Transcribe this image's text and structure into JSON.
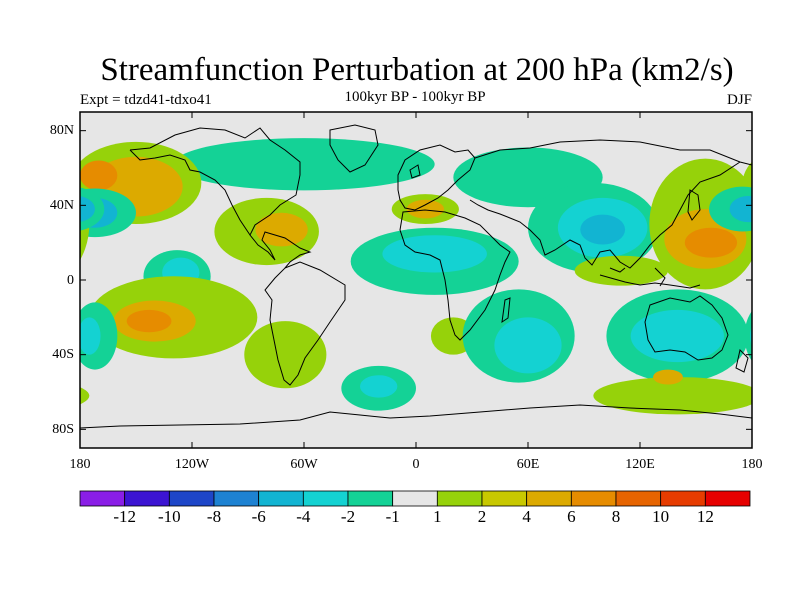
{
  "title": "Streamfunction Perturbation at 200 hPa (km2/s)",
  "experiment": "Expt = tdzd41-tdxo41",
  "period": "100kyr BP - 100kyr BP",
  "season": "DJF",
  "lat_labels": [
    "80N",
    "40N",
    "0",
    "40S",
    "80S"
  ],
  "lon_labels": [
    "180",
    "120W",
    "60W",
    "0",
    "60E",
    "120E",
    "180"
  ],
  "colorbar": {
    "colors": [
      "#8a1ee6",
      "#3c14d2",
      "#1e46c8",
      "#1e82d2",
      "#12b4d2",
      "#14d2d2",
      "#14d296",
      "#e6e6e6",
      "#96d20a",
      "#c8c800",
      "#dcaa00",
      "#e68c00",
      "#e66400",
      "#e63c00",
      "#e60000"
    ],
    "labels": [
      "-12",
      "-10",
      "-8",
      "-6",
      "-4",
      "-2",
      "-1",
      "1",
      "2",
      "4",
      "6",
      "8",
      "10",
      "12"
    ]
  },
  "map_data": {
    "projection": "cylindrical-equidistant",
    "lon_range": [
      -180,
      180
    ],
    "lat_range": [
      -90,
      90
    ],
    "field": "200 hPa streamfunction perturbation",
    "units": "km2/s",
    "features": [
      {
        "name": "arctic-negative",
        "color": "#14d296",
        "lon": -60,
        "lat": 62,
        "rlon": 70,
        "rlat": 14
      },
      {
        "name": "eurasia-negative",
        "color": "#14d296",
        "lon": 60,
        "lat": 55,
        "rlon": 40,
        "rlat": 16
      },
      {
        "name": "ne-pacific-positive",
        "color": "#96d20a",
        "lon": -150,
        "lat": 52,
        "rlon": 35,
        "rlat": 22
      },
      {
        "name": "ne-pacific-positive-core",
        "color": "#dcaa00",
        "lon": -150,
        "lat": 50,
        "rlon": 25,
        "rlat": 16
      },
      {
        "name": "ne-pacific-positive-max",
        "color": "#e68c00",
        "lon": -170,
        "lat": 56,
        "rlon": 10,
        "rlat": 8
      },
      {
        "name": "north-pacific-negative",
        "color": "#14d296",
        "lon": -172,
        "lat": 36,
        "rlon": 22,
        "rlat": 13
      },
      {
        "name": "north-pacific-negative-core",
        "color": "#12b4d2",
        "lon": -172,
        "lat": 36,
        "rlon": 12,
        "rlat": 8
      },
      {
        "name": "central-pacific-negative",
        "color": "#14d296",
        "lon": -128,
        "lat": 2,
        "rlon": 18,
        "rlat": 14
      },
      {
        "name": "central-pacific-negative-core",
        "color": "#14d2d2",
        "lon": -126,
        "lat": 4,
        "rlon": 10,
        "rlat": 8
      },
      {
        "name": "north-america-positive",
        "color": "#96d20a",
        "lon": -80,
        "lat": 26,
        "rlon": 28,
        "rlat": 18
      },
      {
        "name": "north-america-positive-core",
        "color": "#dcaa00",
        "lon": -72,
        "lat": 27,
        "rlon": 14,
        "rlat": 9
      },
      {
        "name": "south-pacific-positive",
        "color": "#96d20a",
        "lon": -130,
        "lat": -20,
        "rlon": 45,
        "rlat": 22
      },
      {
        "name": "south-pacific-positive-core",
        "color": "#dcaa00",
        "lon": -140,
        "lat": -22,
        "rlon": 22,
        "rlat": 11
      },
      {
        "name": "south-pacific-positive-max",
        "color": "#e68c00",
        "lon": -143,
        "lat": -22,
        "rlon": 12,
        "rlat": 6
      },
      {
        "name": "south-america-positive",
        "color": "#96d20a",
        "lon": -70,
        "lat": -40,
        "rlon": 22,
        "rlat": 18
      },
      {
        "name": "south-atlantic-negative",
        "color": "#14d296",
        "lon": -20,
        "lat": -58,
        "rlon": 20,
        "rlat": 12
      },
      {
        "name": "south-atlantic-negative-core",
        "color": "#14d2d2",
        "lon": -20,
        "lat": -57,
        "rlon": 10,
        "rlat": 6
      },
      {
        "name": "atlantic-africa-negative",
        "color": "#14d296",
        "lon": 10,
        "lat": 10,
        "rlon": 45,
        "rlat": 18
      },
      {
        "name": "atlantic-africa-negative-core",
        "color": "#14d2d2",
        "lon": 10,
        "lat": 14,
        "rlon": 28,
        "rlat": 10
      },
      {
        "name": "mediterranean-positive",
        "color": "#96d20a",
        "lon": 5,
        "lat": 38,
        "rlon": 18,
        "rlat": 8
      },
      {
        "name": "mediterranean-positive-core",
        "color": "#dcaa00",
        "lon": 5,
        "lat": 38,
        "rlon": 10,
        "rlat": 5
      },
      {
        "name": "southern-africa-positive",
        "color": "#96d20a",
        "lon": 20,
        "lat": -30,
        "rlon": 12,
        "rlat": 10
      },
      {
        "name": "indian-ocean-negative",
        "color": "#14d296",
        "lon": 55,
        "lat": -30,
        "rlon": 30,
        "rlat": 25
      },
      {
        "name": "indian-ocean-negative-core",
        "color": "#14d2d2",
        "lon": 60,
        "lat": -35,
        "rlon": 18,
        "rlat": 15
      },
      {
        "name": "asia-negative",
        "color": "#14d296",
        "lon": 95,
        "lat": 28,
        "rlon": 35,
        "rlat": 24
      },
      {
        "name": "asia-negative-mid",
        "color": "#14d2d2",
        "lon": 100,
        "lat": 28,
        "rlon": 24,
        "rlat": 16
      },
      {
        "name": "asia-negative-core",
        "color": "#12b4d2",
        "lon": 100,
        "lat": 27,
        "rlon": 12,
        "rlat": 8
      },
      {
        "name": "maritime-continent-positive",
        "color": "#96d20a",
        "lon": 110,
        "lat": 5,
        "rlon": 25,
        "rlat": 8
      },
      {
        "name": "west-pacific-positive",
        "color": "#96d20a",
        "lon": 155,
        "lat": 30,
        "rlon": 30,
        "rlat": 35
      },
      {
        "name": "west-pacific-positive-core",
        "color": "#dcaa00",
        "lon": 155,
        "lat": 22,
        "rlon": 22,
        "rlat": 16
      },
      {
        "name": "west-pacific-positive-max",
        "color": "#e68c00",
        "lon": 158,
        "lat": 20,
        "rlon": 14,
        "rlat": 8
      },
      {
        "name": "nw-pacific-negative",
        "color": "#14d296",
        "lon": 175,
        "lat": 38,
        "rlon": 18,
        "rlat": 12
      },
      {
        "name": "nw-pacific-negative-core",
        "color": "#12b4d2",
        "lon": 178,
        "lat": 38,
        "rlon": 10,
        "rlat": 7
      },
      {
        "name": "australia-negative",
        "color": "#14d296",
        "lon": 140,
        "lat": -30,
        "rlon": 38,
        "rlat": 25
      },
      {
        "name": "australia-negative-core",
        "color": "#14d2d2",
        "lon": 140,
        "lat": -30,
        "rlon": 25,
        "rlat": 14
      },
      {
        "name": "southern-ocean-positive",
        "color": "#96d20a",
        "lon": 140,
        "lat": -62,
        "rlon": 45,
        "rlat": 10
      },
      {
        "name": "tasman-positive",
        "color": "#dcaa00",
        "lon": 135,
        "lat": -52,
        "rlon": 8,
        "rlat": 4
      },
      {
        "name": "east-pacific-negative",
        "color": "#14d296",
        "lon": -172,
        "lat": -30,
        "rlon": 12,
        "rlat": 18
      },
      {
        "name": "east-pacific-negative-core",
        "color": "#14d2d2",
        "lon": -175,
        "lat": -30,
        "rlon": 6,
        "rlat": 10
      }
    ]
  }
}
